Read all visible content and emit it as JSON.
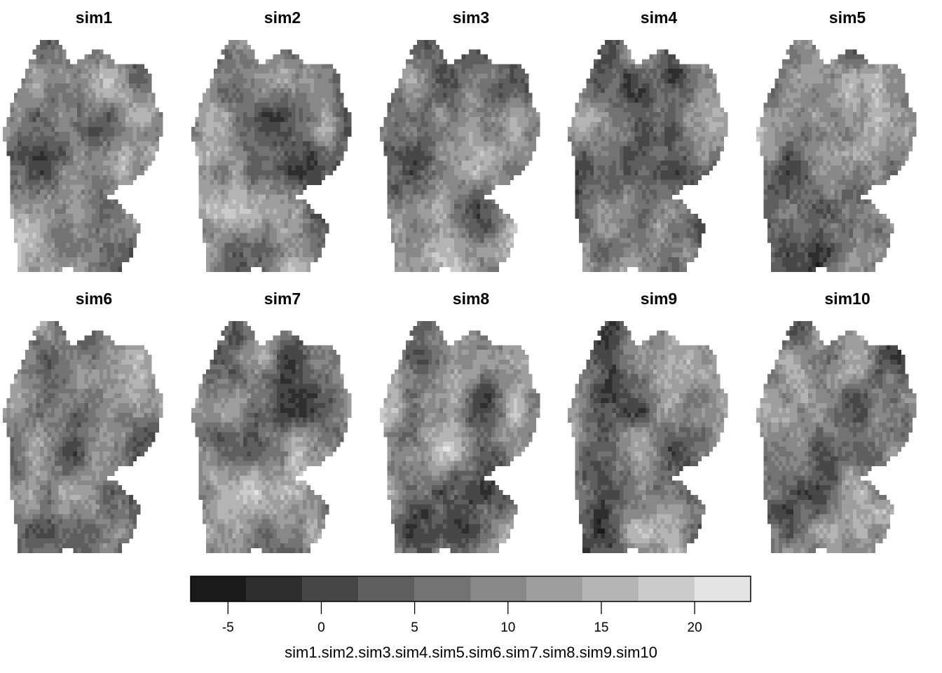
{
  "panels": [
    "sim1",
    "sim2",
    "sim3",
    "sim4",
    "sim5",
    "sim6",
    "sim7",
    "sim8",
    "sim9",
    "sim10"
  ],
  "legend": {
    "title": "sim1.sim2.sim3.sim4.sim5.sim6.sim7.sim8.sim9.sim10",
    "breaks": [
      -7,
      -4,
      -1,
      2,
      5,
      8,
      11,
      14,
      17,
      20,
      23
    ],
    "colors": [
      "#1a1a1a",
      "#2e2e2e",
      "#474747",
      "#5e5e5e",
      "#737373",
      "#888888",
      "#9e9e9e",
      "#b4b4b4",
      "#cbcbcb",
      "#e4e4e4"
    ],
    "ticks": [
      -5,
      0,
      5,
      10,
      15,
      20
    ]
  }
}
